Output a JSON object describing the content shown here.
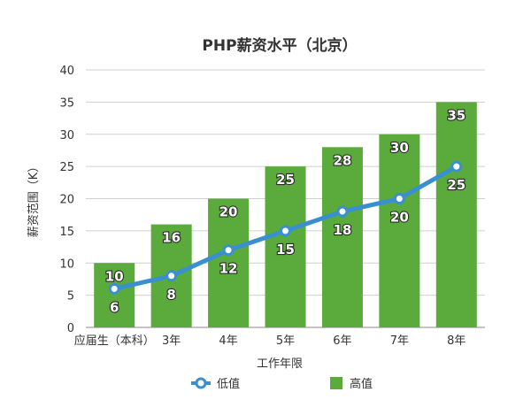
{
  "chart_data": {
    "type": "bar",
    "title": "PHP薪资水平（北京）",
    "xlabel": "工作年限",
    "ylabel": "薪资范围（K）",
    "ylim": [
      0,
      40
    ],
    "yticks": [
      "0",
      "5",
      "10",
      "15",
      "20",
      "25",
      "30",
      "35",
      "40"
    ],
    "grid": true,
    "legend_position": "bottom",
    "categories": [
      "应届生（本科）",
      "3年",
      "4年",
      "5年",
      "6年",
      "7年",
      "8年"
    ],
    "series": [
      {
        "name": "低值",
        "type": "line",
        "values": [
          6,
          8,
          12,
          15,
          18,
          20,
          25
        ],
        "labels": [
          "6",
          "8",
          "12",
          "15",
          "18",
          "20",
          "25"
        ],
        "color": "#3a8fd0"
      },
      {
        "name": "高值",
        "type": "bar",
        "values": [
          10,
          16,
          20,
          25,
          28,
          30,
          35
        ],
        "labels": [
          "10",
          "16",
          "20",
          "25",
          "28",
          "30",
          "35"
        ],
        "color": "#5aab3b"
      }
    ]
  }
}
